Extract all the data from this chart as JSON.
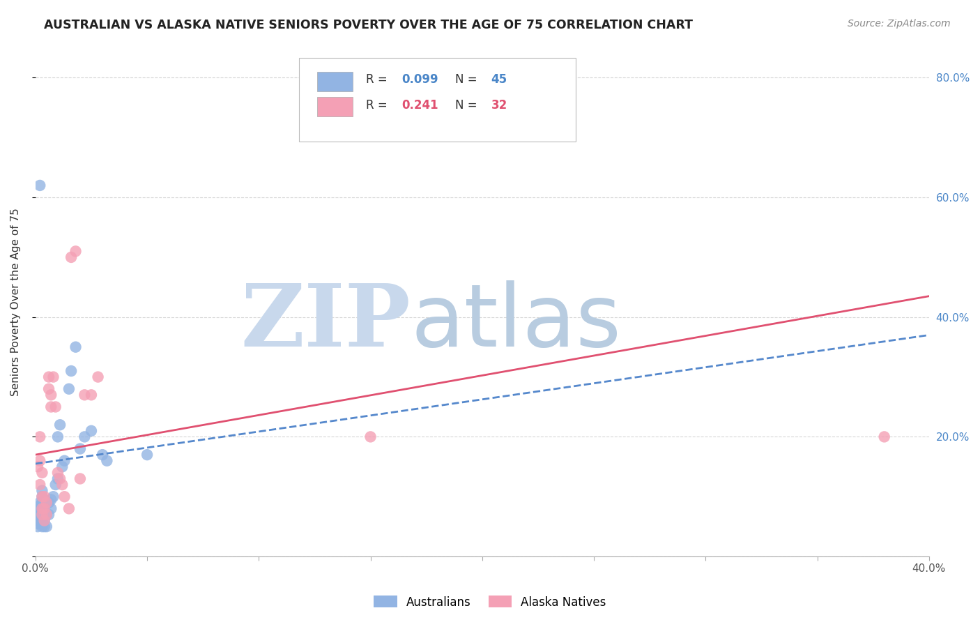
{
  "title": "AUSTRALIAN VS ALASKA NATIVE SENIORS POVERTY OVER THE AGE OF 75 CORRELATION CHART",
  "source": "Source: ZipAtlas.com",
  "ylabel": "Seniors Poverty Over the Age of 75",
  "xlim": [
    0.0,
    0.4
  ],
  "ylim": [
    0.0,
    0.85
  ],
  "color_australian": "#92b4e3",
  "color_alaska": "#f4a0b5",
  "color_line_australian": "#5588cc",
  "color_line_alaska": "#e05070",
  "watermark_zip": "ZIP",
  "watermark_atlas": "atlas",
  "watermark_color_zip": "#c8d8ec",
  "watermark_color_atlas": "#b8cce0",
  "legend_r_aus": "0.099",
  "legend_n_aus": "45",
  "legend_r_ak": "0.241",
  "legend_n_ak": "32",
  "aus_x": [
    0.001,
    0.001,
    0.001,
    0.002,
    0.002,
    0.002,
    0.002,
    0.002,
    0.002,
    0.003,
    0.003,
    0.003,
    0.003,
    0.003,
    0.003,
    0.003,
    0.004,
    0.004,
    0.004,
    0.004,
    0.004,
    0.005,
    0.005,
    0.005,
    0.006,
    0.006,
    0.007,
    0.007,
    0.008,
    0.009,
    0.01,
    0.01,
    0.011,
    0.012,
    0.013,
    0.015,
    0.016,
    0.018,
    0.02,
    0.022,
    0.025,
    0.03,
    0.032,
    0.05,
    0.002
  ],
  "aus_y": [
    0.05,
    0.055,
    0.06,
    0.065,
    0.07,
    0.075,
    0.08,
    0.085,
    0.09,
    0.05,
    0.06,
    0.07,
    0.08,
    0.09,
    0.1,
    0.11,
    0.05,
    0.06,
    0.07,
    0.08,
    0.095,
    0.05,
    0.07,
    0.09,
    0.07,
    0.09,
    0.08,
    0.095,
    0.1,
    0.12,
    0.13,
    0.2,
    0.22,
    0.15,
    0.16,
    0.28,
    0.31,
    0.35,
    0.18,
    0.2,
    0.21,
    0.17,
    0.16,
    0.17,
    0.62
  ],
  "alaska_x": [
    0.001,
    0.002,
    0.002,
    0.002,
    0.003,
    0.003,
    0.003,
    0.003,
    0.004,
    0.004,
    0.004,
    0.005,
    0.005,
    0.006,
    0.006,
    0.007,
    0.007,
    0.008,
    0.009,
    0.01,
    0.011,
    0.012,
    0.013,
    0.015,
    0.016,
    0.018,
    0.02,
    0.022,
    0.025,
    0.028,
    0.15,
    0.38
  ],
  "alaska_y": [
    0.15,
    0.12,
    0.16,
    0.2,
    0.07,
    0.08,
    0.1,
    0.14,
    0.06,
    0.08,
    0.1,
    0.07,
    0.09,
    0.28,
    0.3,
    0.25,
    0.27,
    0.3,
    0.25,
    0.14,
    0.13,
    0.12,
    0.1,
    0.08,
    0.5,
    0.51,
    0.13,
    0.27,
    0.27,
    0.3,
    0.2,
    0.2
  ],
  "alaska_line_x0": 0.0,
  "alaska_line_y0": 0.17,
  "alaska_line_x1": 0.4,
  "alaska_line_y1": 0.435,
  "aus_line_x0": 0.0,
  "aus_line_y0": 0.155,
  "aus_line_x1": 0.4,
  "aus_line_y1": 0.37
}
